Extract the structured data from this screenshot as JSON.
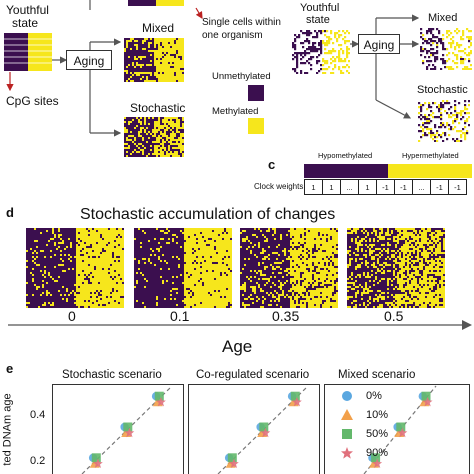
{
  "panel_a": {
    "youthful_state": [
      "Youthful",
      "state"
    ],
    "aging_label": "Aging",
    "mixed_label": "Mixed",
    "stochastic_label": "Stochastic",
    "cpg_sites": "CpG sites",
    "single_cells": [
      "Single cells within",
      "one organism"
    ],
    "legend_unmethylated": "Unmethylated",
    "legend_methylated": "Methylated",
    "color_unmethylated": "#3b0f4f",
    "color_methylated": "#f6e61c"
  },
  "panel_b": {
    "youthful_state": [
      "Youthful",
      "state"
    ],
    "aging_label": "Aging",
    "mixed_label": "Mixed",
    "stochastic_label": "Stochastic"
  },
  "panel_c": {
    "letter": "c",
    "hypo": "Hypomethylated",
    "hyper": "Hypermethylated",
    "row_label": "Clock weights",
    "weights": [
      "1",
      "1",
      "...",
      "1",
      "-1",
      "-1",
      "...",
      "-1",
      "-1"
    ]
  },
  "panel_d": {
    "letter": "d",
    "title": "Stochastic accumulation of changes",
    "noise_levels": [
      "0",
      "0.1",
      "0.35",
      "0.5"
    ],
    "axis_label": "Age"
  },
  "panel_e": {
    "letter": "e",
    "ylabel": "ted DNAm age",
    "panels": [
      {
        "title": "Stochastic scenario"
      },
      {
        "title": "Co-regulated scenario"
      },
      {
        "title": "Mixed scenario"
      }
    ],
    "y_ticks": [
      "0.4",
      "0.2"
    ],
    "legend": [
      {
        "label": "0%",
        "color": "#5aa7e0",
        "marker": "circle"
      },
      {
        "label": "10%",
        "color": "#f2a04a",
        "marker": "triangle"
      },
      {
        "label": "50%",
        "color": "#63b86b",
        "marker": "square"
      },
      {
        "label": "90%",
        "color": "#e0707c",
        "marker": "star"
      }
    ]
  }
}
